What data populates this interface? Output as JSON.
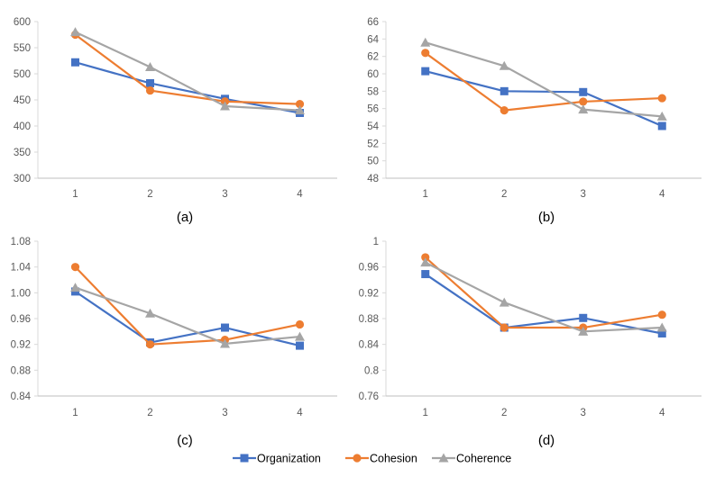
{
  "colors": {
    "Organization": "#4472C4",
    "Cohesion": "#ED7D31",
    "Coherence": "#A5A5A5",
    "grid": "#D9D9D9",
    "axis": "#BFBFBF"
  },
  "legend": {
    "items": [
      "Organization",
      "Cohesion",
      "Coherence"
    ],
    "placement": "bottom"
  },
  "chart_data": [
    {
      "type": "line",
      "caption": "(a)",
      "x": [
        1,
        2,
        3,
        4
      ],
      "ylim": [
        300,
        600
      ],
      "yticks": [
        300,
        350,
        400,
        450,
        500,
        550,
        600
      ],
      "ytick_labels": [
        "300",
        "350",
        "400",
        "450",
        "500",
        "550",
        "600"
      ],
      "grid": false,
      "series": [
        {
          "name": "Organization",
          "values": [
            522,
            482,
            452,
            425
          ]
        },
        {
          "name": "Cohesion",
          "values": [
            575,
            468,
            447,
            442
          ]
        },
        {
          "name": "Coherence",
          "values": [
            580,
            513,
            438,
            430
          ]
        }
      ]
    },
    {
      "type": "line",
      "caption": "(b)",
      "x": [
        1,
        2,
        3,
        4
      ],
      "ylim": [
        48,
        66
      ],
      "yticks": [
        48,
        50,
        52,
        54,
        56,
        58,
        60,
        62,
        64,
        66
      ],
      "ytick_labels": [
        "48",
        "50",
        "52",
        "54",
        "56",
        "58",
        "60",
        "62",
        "64",
        "66"
      ],
      "grid": false,
      "series": [
        {
          "name": "Organization",
          "values": [
            60.3,
            58.0,
            57.9,
            54.0
          ]
        },
        {
          "name": "Cohesion",
          "values": [
            62.4,
            55.8,
            56.8,
            57.2
          ]
        },
        {
          "name": "Coherence",
          "values": [
            63.6,
            60.9,
            55.9,
            55.1
          ]
        }
      ]
    },
    {
      "type": "line",
      "caption": "(c)",
      "x": [
        1,
        2,
        3,
        4
      ],
      "ylim": [
        0.84,
        1.08
      ],
      "yticks": [
        0.84,
        0.88,
        0.92,
        0.96,
        1.0,
        1.04,
        1.08
      ],
      "ytick_labels": [
        "0.84",
        "0.88",
        "0.92",
        "0.96",
        "1.00",
        "1.04",
        "1.08"
      ],
      "grid": false,
      "series": [
        {
          "name": "Organization",
          "values": [
            1.002,
            0.923,
            0.946,
            0.918
          ]
        },
        {
          "name": "Cohesion",
          "values": [
            1.04,
            0.92,
            0.927,
            0.951
          ]
        },
        {
          "name": "Coherence",
          "values": [
            1.008,
            0.968,
            0.921,
            0.932
          ]
        }
      ]
    },
    {
      "type": "line",
      "caption": "(d)",
      "x": [
        1,
        2,
        3,
        4
      ],
      "ylim": [
        0.76,
        1.0
      ],
      "yticks": [
        0.76,
        0.8,
        0.84,
        0.88,
        0.92,
        0.96,
        1.0
      ],
      "ytick_labels": [
        "0.76",
        "0.8",
        "0.84",
        "0.88",
        "0.92",
        "0.96",
        "1"
      ],
      "grid": false,
      "series": [
        {
          "name": "Organization",
          "values": [
            0.949,
            0.866,
            0.881,
            0.857
          ]
        },
        {
          "name": "Cohesion",
          "values": [
            0.975,
            0.866,
            0.866,
            0.886
          ]
        },
        {
          "name": "Coherence",
          "values": [
            0.967,
            0.905,
            0.86,
            0.866
          ]
        }
      ]
    }
  ]
}
